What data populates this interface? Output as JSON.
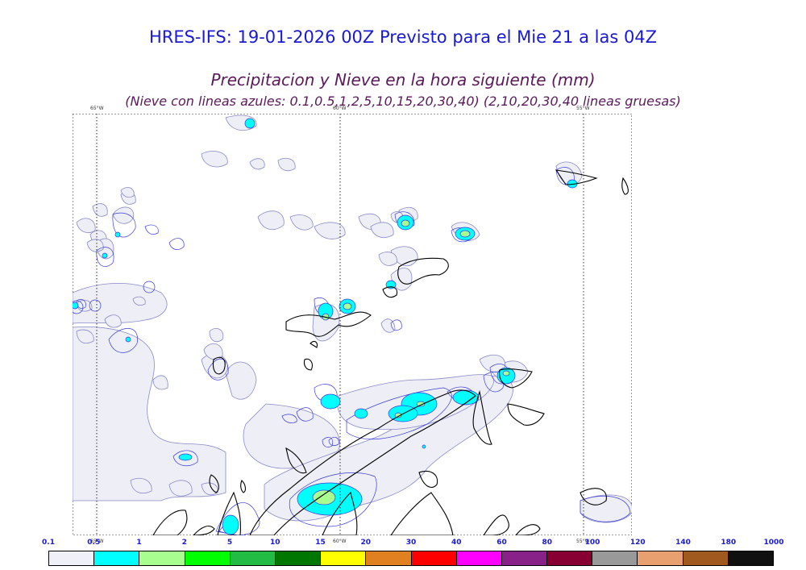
{
  "header": {
    "title": "HRES-IFS: 19-01-2026 00Z Previsto para el Mie 21 a las 04Z",
    "subtitle": "Precipitacion y Nieve en la hora siguiente (mm)",
    "note": "(Nieve con lineas azules: 0.1,0.5,1,2,5,10,15,20,30,40)  (2,10,20,30,40 lineas gruesas)"
  },
  "map": {
    "top_lon_labels": [
      "65°W",
      "60°W",
      "55°W"
    ],
    "bottom_lon_labels": [
      "65°W",
      "60°W",
      "55°W"
    ]
  },
  "legend": {
    "labels": [
      "0.1",
      "0.5",
      "1",
      "2",
      "5",
      "10",
      "15",
      "20",
      "30",
      "40",
      "60",
      "80",
      "100",
      "120",
      "140",
      "180",
      "1000"
    ],
    "colors": [
      "#f0f0f8",
      "#00ffff",
      "#a8ff90",
      "#00ff00",
      "#22bb44",
      "#007700",
      "#ffff00",
      "#e08020",
      "#ff0000",
      "#ff00ff",
      "#882288",
      "#880033",
      "#999999",
      "#e8a070",
      "#a05a20",
      "#101010"
    ]
  }
}
